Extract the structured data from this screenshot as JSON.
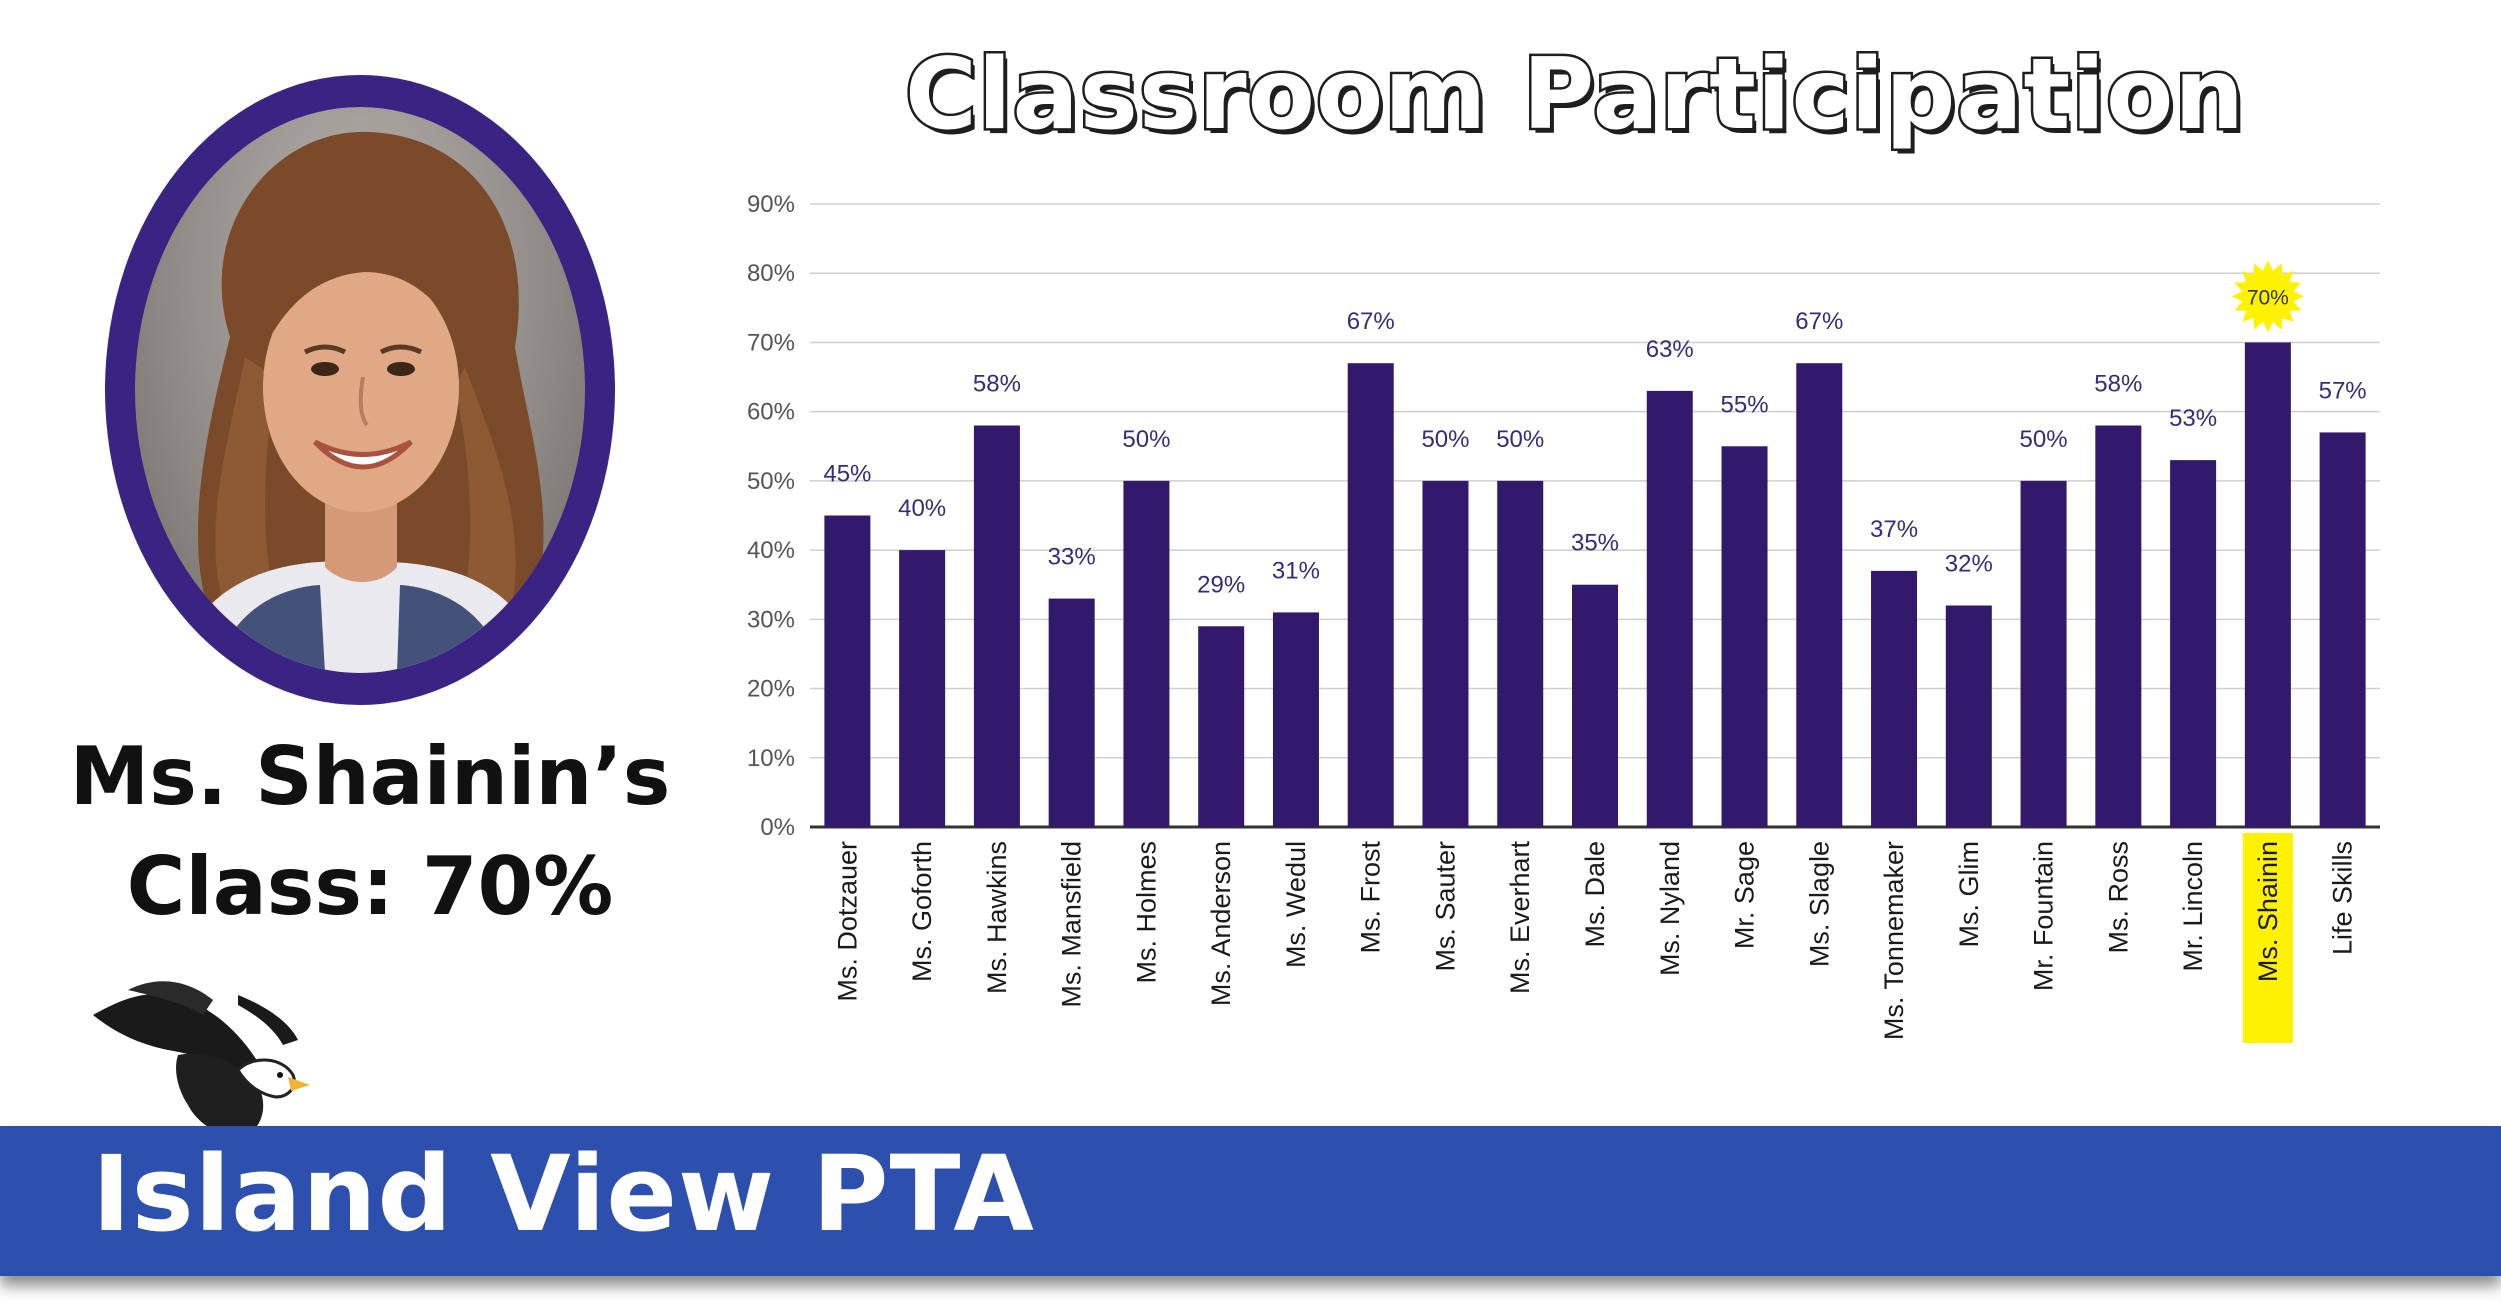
{
  "caption": {
    "line1": "Ms. Shainin’s",
    "line2": "Class: 70%"
  },
  "chart_data": {
    "type": "bar",
    "title": "Classroom Participation",
    "xlabel": "",
    "ylabel": "",
    "ylim": [
      0,
      90
    ],
    "yticks": [
      "0%",
      "10%",
      "20%",
      "30%",
      "40%",
      "50%",
      "60%",
      "70%",
      "80%",
      "90%"
    ],
    "grid": true,
    "bar_color": "#33196b",
    "highlight_color": "#fff200",
    "highlight_category": "Ms. Shainin",
    "categories": [
      "Ms. Dotzauer",
      "Ms. Goforth",
      "Ms. Hawkins",
      "Ms. Mansfield",
      "Ms. Holmes",
      "Ms. Anderson",
      "Ms. Wedul",
      "Ms. Frost",
      "Ms. Sauter",
      "Ms. Everhart",
      "Ms. Dale",
      "Ms. Nyland",
      "Mr. Sage",
      "Ms. Slagle",
      "Ms. Tonnemaker",
      "Ms. Glim",
      "Mr. Fountain",
      "Ms. Ross",
      "Mr. Lincoln",
      "Ms. Shainin",
      "Life Skills"
    ],
    "values": [
      45,
      40,
      58,
      33,
      50,
      29,
      31,
      67,
      50,
      50,
      35,
      63,
      55,
      67,
      37,
      32,
      50,
      58,
      53,
      70,
      57
    ],
    "labels": [
      "45%",
      "40%",
      "58%",
      "33%",
      "50%",
      "29%",
      "31%",
      "67%",
      "50%",
      "50%",
      "35%",
      "63%",
      "55%",
      "67%",
      "37%",
      "32%",
      "50%",
      "58%",
      "53%",
      "70%",
      "57%"
    ]
  },
  "banner": {
    "text": "Island View PTA",
    "color": "#2d4fae"
  },
  "colors": {
    "frame": "#3a2382",
    "bar": "#33196b",
    "label": "#3a2a7a",
    "axis_text": "#555555"
  }
}
